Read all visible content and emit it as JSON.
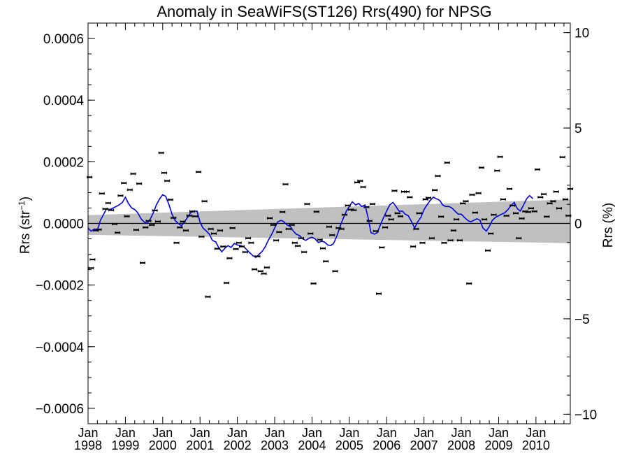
{
  "chart_data": {
    "type": "scatter",
    "title": "Anomaly in SeaWiFS(ST126) Rrs(490) for NPSG",
    "ylabel_left": "Rrs (str",
    "ylabel_left_superscript": "−1",
    "ylabel_left_close": ")",
    "ylabel_right": "Rrs (%)",
    "xlim": [
      1998.0,
      2010.92
    ],
    "ylim_left": [
      -0.00065,
      0.00065
    ],
    "ylim_right": [
      -10.5,
      10.5
    ],
    "left_ticks": [
      {
        "value": 0.0006,
        "label": "0.0006"
      },
      {
        "value": 0.0004,
        "label": "0.0004"
      },
      {
        "value": 0.0002,
        "label": "0.0002"
      },
      {
        "value": 0.0,
        "label": "0.0000"
      },
      {
        "value": -0.0002,
        "label": "−0.0002"
      },
      {
        "value": -0.0004,
        "label": "−0.0004"
      },
      {
        "value": -0.0006,
        "label": "−0.0006"
      }
    ],
    "right_ticks": [
      {
        "value": 10,
        "label": "10"
      },
      {
        "value": 5,
        "label": "5"
      },
      {
        "value": 0,
        "label": "0"
      },
      {
        "value": -5,
        "label": "−5"
      },
      {
        "value": -10,
        "label": "−10"
      }
    ],
    "x_ticks": [
      {
        "value": 1998,
        "top": "Jan",
        "bottom": "1998"
      },
      {
        "value": 1999,
        "top": "Jan",
        "bottom": "1999"
      },
      {
        "value": 2000,
        "top": "Jan",
        "bottom": "2000"
      },
      {
        "value": 2001,
        "top": "Jan",
        "bottom": "2001"
      },
      {
        "value": 2002,
        "top": "Jan",
        "bottom": "2002"
      },
      {
        "value": 2003,
        "top": "Jan",
        "bottom": "2003"
      },
      {
        "value": 2004,
        "top": "Jan",
        "bottom": "2004"
      },
      {
        "value": 2005,
        "top": "Jan",
        "bottom": "2005"
      },
      {
        "value": 2006,
        "top": "Jan",
        "bottom": "2006"
      },
      {
        "value": 2007,
        "top": "Jan",
        "bottom": "2007"
      },
      {
        "value": 2008,
        "top": "Jan",
        "bottom": "2008"
      },
      {
        "value": 2009,
        "top": "Jan",
        "bottom": "2009"
      },
      {
        "value": 2010,
        "top": "Jan",
        "bottom": "2010"
      }
    ],
    "band": {
      "color": "#c0c0c0",
      "x": [
        1998.0,
        2010.92
      ],
      "upper": [
        2.7e-05,
        7.8e-05
      ],
      "lower": [
        -3.7e-05,
        -6.4e-05
      ]
    },
    "zero_line": 0.0,
    "points": [
      {
        "x": 1998.04,
        "y": 0.00015
      },
      {
        "x": 1998.08,
        "y": -0.000145
      },
      {
        "x": 1998.12,
        "y": -0.000117
      },
      {
        "x": 1998.21,
        "y": -2.3e-05
      },
      {
        "x": 1998.29,
        "y": -2e-05
      },
      {
        "x": 1998.37,
        "y": 9.7e-05
      },
      {
        "x": 1998.46,
        "y": 4.7e-05
      },
      {
        "x": 1998.54,
        "y": 6.6e-05
      },
      {
        "x": 1998.62,
        "y": 4.3e-05
      },
      {
        "x": 1998.71,
        "y": -2e-06
      },
      {
        "x": 1998.79,
        "y": -3e-05
      },
      {
        "x": 1998.87,
        "y": 9e-05
      },
      {
        "x": 1998.96,
        "y": 0.000131
      },
      {
        "x": 1999.04,
        "y": 2.3e-05
      },
      {
        "x": 1999.12,
        "y": 0.000109
      },
      {
        "x": 1999.21,
        "y": 0.000161
      },
      {
        "x": 1999.29,
        "y": -2.1e-05
      },
      {
        "x": 1999.37,
        "y": 0.000129
      },
      {
        "x": 1999.46,
        "y": -0.000128
      },
      {
        "x": 1999.54,
        "y": -1.3e-05
      },
      {
        "x": 1999.62,
        "y": 8e-06
      },
      {
        "x": 1999.71,
        "y": -5e-06
      },
      {
        "x": 1999.79,
        "y": 4.2e-05
      },
      {
        "x": 1999.87,
        "y": 6e-06
      },
      {
        "x": 1999.96,
        "y": 0.000229
      },
      {
        "x": 2000.04,
        "y": 0.000164
      },
      {
        "x": 2000.12,
        "y": 0.000138
      },
      {
        "x": 2000.21,
        "y": 7.7e-05
      },
      {
        "x": 2000.29,
        "y": 1.8e-05
      },
      {
        "x": 2000.37,
        "y": -6.3e-05
      },
      {
        "x": 2000.46,
        "y": -1.3e-05
      },
      {
        "x": 2000.54,
        "y": 6e-06
      },
      {
        "x": 2000.62,
        "y": -2.3e-05
      },
      {
        "x": 2000.71,
        "y": 2.5e-05
      },
      {
        "x": 2000.79,
        "y": 3.9e-05
      },
      {
        "x": 2000.87,
        "y": 2.3e-05
      },
      {
        "x": 2000.96,
        "y": 0.000167
      },
      {
        "x": 2001.04,
        "y": -4.3e-05
      },
      {
        "x": 2001.12,
        "y": 7.2e-05
      },
      {
        "x": 2001.21,
        "y": -0.000238
      },
      {
        "x": 2001.29,
        "y": -1.8e-05
      },
      {
        "x": 2001.37,
        "y": -3.3e-05
      },
      {
        "x": 2001.46,
        "y": -8.2e-05
      },
      {
        "x": 2001.54,
        "y": -2.3e-05
      },
      {
        "x": 2001.62,
        "y": -7.5e-05
      },
      {
        "x": 2001.71,
        "y": -0.000193
      },
      {
        "x": 2001.79,
        "y": -0.000113
      },
      {
        "x": 2001.87,
        "y": -1.5e-05
      },
      {
        "x": 2001.96,
        "y": -8.3e-05
      },
      {
        "x": 2002.04,
        "y": -6.3e-05
      },
      {
        "x": 2002.12,
        "y": -7.5e-05
      },
      {
        "x": 2002.21,
        "y": -9.3e-05
      },
      {
        "x": 2002.29,
        "y": -4.8e-05
      },
      {
        "x": 2002.37,
        "y": -6.3e-05
      },
      {
        "x": 2002.46,
        "y": -0.000149
      },
      {
        "x": 2002.54,
        "y": -0.000107
      },
      {
        "x": 2002.62,
        "y": -0.000155
      },
      {
        "x": 2002.71,
        "y": -0.000163
      },
      {
        "x": 2002.79,
        "y": -0.000143
      },
      {
        "x": 2002.87,
        "y": 1.7e-05
      },
      {
        "x": 2002.96,
        "y": -5e-06
      },
      {
        "x": 2003.04,
        "y": -5.5e-05
      },
      {
        "x": 2003.12,
        "y": -2.8e-05
      },
      {
        "x": 2003.21,
        "y": 3.7e-05
      },
      {
        "x": 2003.29,
        "y": 0.000127
      },
      {
        "x": 2003.37,
        "y": -1.8e-05
      },
      {
        "x": 2003.46,
        "y": -5e-06
      },
      {
        "x": 2003.54,
        "y": -6.3e-05
      },
      {
        "x": 2003.62,
        "y": -7.3e-05
      },
      {
        "x": 2003.71,
        "y": -4.8e-05
      },
      {
        "x": 2003.79,
        "y": -9.3e-05
      },
      {
        "x": 2003.87,
        "y": 6.3e-05
      },
      {
        "x": 2003.96,
        "y": -3.3e-05
      },
      {
        "x": 2004.04,
        "y": -0.000195
      },
      {
        "x": 2004.12,
        "y": 3.8e-05
      },
      {
        "x": 2004.21,
        "y": -5.3e-05
      },
      {
        "x": 2004.29,
        "y": -8.1e-05
      },
      {
        "x": 2004.37,
        "y": -0.000123
      },
      {
        "x": 2004.46,
        "y": -1.1e-05
      },
      {
        "x": 2004.54,
        "y": -3.8e-05
      },
      {
        "x": 2004.62,
        "y": -0.000155
      },
      {
        "x": 2004.71,
        "y": -1.5e-05
      },
      {
        "x": 2004.79,
        "y": -1.8e-05
      },
      {
        "x": 2004.87,
        "y": 2.8e-05
      },
      {
        "x": 2004.96,
        "y": 5.8e-05
      },
      {
        "x": 2005.04,
        "y": 4.5e-05
      },
      {
        "x": 2005.12,
        "y": 4.3e-05
      },
      {
        "x": 2005.21,
        "y": 0.000133
      },
      {
        "x": 2005.29,
        "y": 0.000138
      },
      {
        "x": 2005.37,
        "y": 0.000118
      },
      {
        "x": 2005.46,
        "y": 5.3e-05
      },
      {
        "x": 2005.54,
        "y": 8e-06
      },
      {
        "x": 2005.62,
        "y": 6.3e-05
      },
      {
        "x": 2005.71,
        "y": -2.5e-05
      },
      {
        "x": 2005.79,
        "y": -0.000228
      },
      {
        "x": 2005.87,
        "y": -7.8e-05
      },
      {
        "x": 2005.96,
        "y": -1.3e-05
      },
      {
        "x": 2006.04,
        "y": 2.5e-05
      },
      {
        "x": 2006.12,
        "y": 1.3e-05
      },
      {
        "x": 2006.21,
        "y": 0.000106
      },
      {
        "x": 2006.29,
        "y": 3.3e-05
      },
      {
        "x": 2006.37,
        "y": 2.3e-05
      },
      {
        "x": 2006.46,
        "y": 0.000103
      },
      {
        "x": 2006.54,
        "y": 0.000103
      },
      {
        "x": 2006.62,
        "y": 8.5e-05
      },
      {
        "x": 2006.71,
        "y": -7.5e-05
      },
      {
        "x": 2006.79,
        "y": -1.8e-05
      },
      {
        "x": 2006.87,
        "y": 3.3e-05
      },
      {
        "x": 2006.96,
        "y": -6.3e-05
      },
      {
        "x": 2007.04,
        "y": 7.8e-05
      },
      {
        "x": 2007.12,
        "y": 8.3e-05
      },
      {
        "x": 2007.21,
        "y": -4.8e-05
      },
      {
        "x": 2007.29,
        "y": 0.000108
      },
      {
        "x": 2007.37,
        "y": 0.000154
      },
      {
        "x": 2007.46,
        "y": 2.2e-05
      },
      {
        "x": 2007.54,
        "y": -6.3e-05
      },
      {
        "x": 2007.62,
        "y": 0.000197
      },
      {
        "x": 2007.71,
        "y": -5.5e-05
      },
      {
        "x": 2007.79,
        "y": -2.3e-05
      },
      {
        "x": 2007.87,
        "y": 1.3e-05
      },
      {
        "x": 2007.96,
        "y": -5.5e-05
      },
      {
        "x": 2008.04,
        "y": 6.5e-05
      },
      {
        "x": 2008.12,
        "y": 7.2e-05
      },
      {
        "x": 2008.21,
        "y": -0.000195
      },
      {
        "x": 2008.29,
        "y": 9.3e-05
      },
      {
        "x": 2008.37,
        "y": 3.5e-05
      },
      {
        "x": 2008.46,
        "y": 9.8e-05
      },
      {
        "x": 2008.54,
        "y": 0.000181
      },
      {
        "x": 2008.62,
        "y": 1.3e-05
      },
      {
        "x": 2008.71,
        "y": -8.8e-05
      },
      {
        "x": 2008.79,
        "y": -3.3e-05
      },
      {
        "x": 2008.87,
        "y": 2.8e-05
      },
      {
        "x": 2008.96,
        "y": 0.000171
      },
      {
        "x": 2009.04,
        "y": 0.000216
      },
      {
        "x": 2009.12,
        "y": 7.8e-05
      },
      {
        "x": 2009.21,
        "y": 2.5e-05
      },
      {
        "x": 2009.29,
        "y": 0.000112
      },
      {
        "x": 2009.37,
        "y": 5.8e-05
      },
      {
        "x": 2009.46,
        "y": 3.3e-05
      },
      {
        "x": 2009.54,
        "y": -4.8e-05
      },
      {
        "x": 2009.62,
        "y": 1.6e-05
      },
      {
        "x": 2009.71,
        "y": 3.9e-05
      },
      {
        "x": 2009.79,
        "y": 3.7e-05
      },
      {
        "x": 2009.87,
        "y": 4.9e-05
      },
      {
        "x": 2009.96,
        "y": 3.9e-05
      },
      {
        "x": 2010.04,
        "y": 0.000175
      },
      {
        "x": 2010.12,
        "y": 8.5e-05
      },
      {
        "x": 2010.21,
        "y": 9.5e-05
      },
      {
        "x": 2010.29,
        "y": 2.2e-05
      },
      {
        "x": 2010.37,
        "y": 6.5e-05
      },
      {
        "x": 2010.46,
        "y": 7.2e-05
      },
      {
        "x": 2010.54,
        "y": 0.000103
      },
      {
        "x": 2010.62,
        "y": 4.9e-05
      },
      {
        "x": 2010.71,
        "y": 0.000215
      },
      {
        "x": 2010.79,
        "y": 7.8e-05
      },
      {
        "x": 2010.87,
        "y": 2.5e-05
      },
      {
        "x": 2010.92,
        "y": 0.000112
      }
    ],
    "running_mean": {
      "color": "#0000dd",
      "x": [
        1998.0,
        1998.08,
        1998.17,
        1998.25,
        1998.33,
        1998.42,
        1998.5,
        1998.58,
        1998.67,
        1998.75,
        1998.83,
        1998.92,
        1999.0,
        1999.08,
        1999.17,
        1999.25,
        1999.33,
        1999.42,
        1999.5,
        1999.58,
        1999.67,
        1999.75,
        1999.83,
        1999.92,
        2000.0,
        2000.08,
        2000.17,
        2000.25,
        2000.33,
        2000.42,
        2000.5,
        2000.58,
        2000.67,
        2000.75,
        2000.83,
        2000.92,
        2001.0,
        2001.08,
        2001.17,
        2001.25,
        2001.33,
        2001.42,
        2001.5,
        2001.58,
        2001.67,
        2001.75,
        2001.83,
        2001.92,
        2002.0,
        2002.08,
        2002.17,
        2002.25,
        2002.33,
        2002.42,
        2002.5,
        2002.58,
        2002.67,
        2002.75,
        2002.83,
        2002.92,
        2003.0,
        2003.08,
        2003.17,
        2003.25,
        2003.33,
        2003.42,
        2003.5,
        2003.58,
        2003.67,
        2003.75,
        2003.83,
        2003.92,
        2004.0,
        2004.08,
        2004.17,
        2004.25,
        2004.33,
        2004.42,
        2004.5,
        2004.58,
        2004.67,
        2004.75,
        2004.83,
        2004.92,
        2005.0,
        2005.08,
        2005.17,
        2005.25,
        2005.33,
        2005.42,
        2005.5,
        2005.58,
        2005.67,
        2005.75,
        2005.83,
        2005.92,
        2006.0,
        2006.08,
        2006.17,
        2006.25,
        2006.33,
        2006.42,
        2006.5,
        2006.58,
        2006.67,
        2006.75,
        2006.83,
        2006.92,
        2007.0,
        2007.08,
        2007.17,
        2007.25,
        2007.33,
        2007.42,
        2007.5,
        2007.58,
        2007.67,
        2007.75,
        2007.83,
        2007.92,
        2008.0,
        2008.08,
        2008.17,
        2008.25,
        2008.33,
        2008.42,
        2008.5,
        2008.58,
        2008.67,
        2008.75,
        2008.83,
        2008.92,
        2009.0,
        2009.08,
        2009.17,
        2009.25,
        2009.33,
        2009.42,
        2009.5,
        2009.58,
        2009.67,
        2009.75,
        2009.83,
        2009.92
      ],
      "y": [
        -1.5e-05,
        -2.5e-05,
        -1.8e-05,
        -2.2e-05,
        1e-05,
        3e-05,
        4.8e-05,
        4.5e-05,
        5e-05,
        5.5e-05,
        6e-05,
        6.8e-05,
        8.5e-05,
        6.5e-05,
        5e-05,
        4.5e-05,
        3.5e-05,
        1.5e-05,
        5e-06,
        0.0,
        1.5e-05,
        3.5e-05,
        6e-05,
        8e-05,
        9.3e-05,
        8.8e-05,
        6e-05,
        3e-05,
        1e-05,
        0.0,
        -8e-06,
        5e-06,
        2e-05,
        3.5e-05,
        4e-05,
        4e-05,
        5e-06,
        -1.5e-05,
        -2.5e-05,
        -3.5e-05,
        -5.5e-05,
        -6e-05,
        -7.8e-05,
        -9.2e-05,
        -8e-05,
        -7.2e-05,
        -7.8e-05,
        -6.5e-05,
        -7e-05,
        -7.2e-05,
        -7.5e-05,
        -8.5e-05,
        -9.5e-05,
        -0.000105,
        -0.00011,
        -0.0001,
        -9e-05,
        -7.5e-05,
        -5.5e-05,
        -3.5e-05,
        -1.5e-05,
        5e-06,
        1e-05,
        5e-06,
        -5e-06,
        -1e-05,
        -2.5e-05,
        -3.5e-05,
        -4e-05,
        -5e-05,
        -5.5e-05,
        -4.8e-05,
        -4.5e-05,
        -5e-05,
        -6.2e-05,
        -5.8e-05,
        -6e-05,
        -7e-05,
        -7.2e-05,
        -6.5e-05,
        -4e-05,
        -1e-05,
        1.5e-05,
        4e-05,
        5.5e-05,
        7e-05,
        6e-05,
        6.5e-05,
        5.5e-05,
        6e-05,
        2e-05,
        -3e-05,
        -3.5e-05,
        -3e-05,
        -5e-06,
        2e-05,
        4e-05,
        6e-05,
        6.8e-05,
        5.5e-05,
        4e-05,
        4e-05,
        3e-05,
        2.5e-05,
        5e-06,
        -1.5e-05,
        5e-06,
        2e-05,
        4.5e-05,
        6e-05,
        7.5e-05,
        8.5e-05,
        8e-05,
        7.5e-05,
        6e-05,
        5.5e-05,
        5.5e-05,
        5e-05,
        4e-05,
        3e-05,
        3e-05,
        2e-05,
        1e-05,
        5e-06,
        1e-05,
        1.5e-05,
        1e-05,
        -1.5e-05,
        -2.5e-05,
        -1e-05,
        1e-05,
        2e-05,
        2.5e-05,
        3e-05,
        3.5e-05,
        4.5e-05,
        5.8e-05,
        6.8e-05,
        4.8e-05,
        4e-05,
        6e-05,
        8e-05,
        9e-05,
        8e-05
      ]
    }
  }
}
